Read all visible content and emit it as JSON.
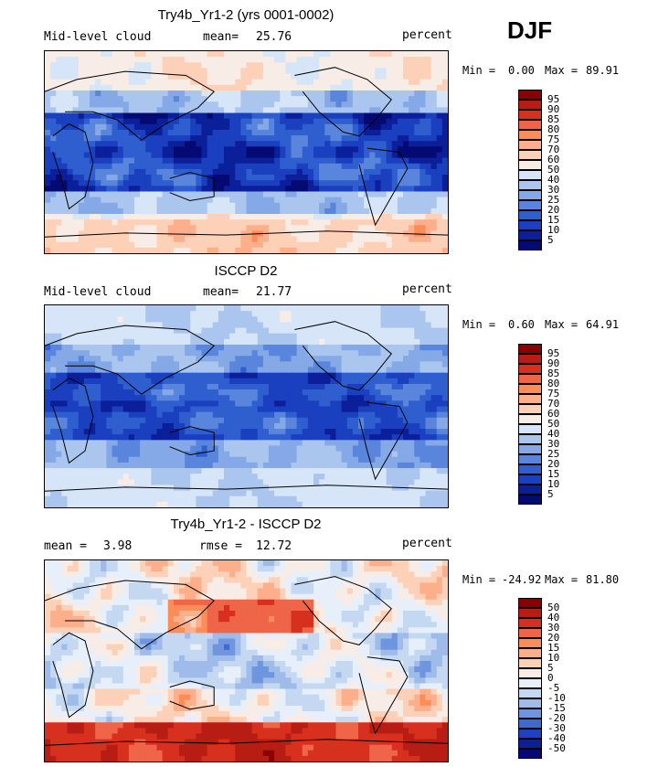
{
  "season": "DJF",
  "chart_data": [
    {
      "type": "heatmap",
      "title": "Try4b_Yr1-2 (yrs 0001-0002)",
      "left_label": "Mid-level cloud",
      "stat_label": "mean=",
      "stat_value": "25.76",
      "units": "percent",
      "min_label": "Min =",
      "min_value": "0.00",
      "max_label": "Max =",
      "max_value": "89.91",
      "colorbar_levels": [
        "95",
        "90",
        "85",
        "80",
        "75",
        "70",
        "60",
        "50",
        "40",
        "30",
        "25",
        "20",
        "15",
        "10",
        "5"
      ],
      "colorbar_colors": [
        "#8b0000",
        "#b81d13",
        "#d7301f",
        "#ef6548",
        "#fc8d59",
        "#fdae8b",
        "#fdd0b8",
        "#f7ece6",
        "#d6e5f7",
        "#aac6ee",
        "#85a9e6",
        "#5a85dc",
        "#2f5ecf",
        "#1a3fbf",
        "#0a1f99",
        "#050a72"
      ],
      "field": "model"
    },
    {
      "type": "heatmap",
      "title": "ISCCP D2",
      "left_label": "Mid-level cloud",
      "stat_label": "mean=",
      "stat_value": "21.77",
      "units": "percent",
      "min_label": "Min =",
      "min_value": "0.60",
      "max_label": "Max =",
      "max_value": "64.91",
      "colorbar_levels": [
        "95",
        "90",
        "85",
        "80",
        "75",
        "70",
        "60",
        "50",
        "40",
        "30",
        "25",
        "20",
        "15",
        "10",
        "5"
      ],
      "colorbar_colors": [
        "#8b0000",
        "#b81d13",
        "#d7301f",
        "#ef6548",
        "#fc8d59",
        "#fdae8b",
        "#fdd0b8",
        "#f7ece6",
        "#d6e5f7",
        "#aac6ee",
        "#85a9e6",
        "#5a85dc",
        "#2f5ecf",
        "#1a3fbf",
        "#0a1f99",
        "#050a72"
      ],
      "field": "obs"
    },
    {
      "type": "heatmap",
      "title": "Try4b_Yr1-2 - ISCCP D2",
      "left_label": "mean =",
      "left_value": "3.98",
      "stat_label": "rmse =",
      "stat_value": "12.72",
      "units": "percent",
      "min_label": "Min =",
      "min_value": "-24.92",
      "max_label": "Max =",
      "max_value": "81.80",
      "colorbar_levels": [
        "50",
        "40",
        "30",
        "20",
        "15",
        "10",
        "5",
        "0",
        "-5",
        "-10",
        "-15",
        "-20",
        "-30",
        "-40",
        "-50"
      ],
      "colorbar_colors": [
        "#8b0000",
        "#b81d13",
        "#d7301f",
        "#ef6548",
        "#fc8d59",
        "#fdae8b",
        "#fdd0b8",
        "#f7ece6",
        "#e6effa",
        "#c5d8f2",
        "#9ebbea",
        "#6f95de",
        "#3f6ad0",
        "#1f41bd",
        "#0a1f99",
        "#050a72"
      ],
      "field": "diff"
    }
  ]
}
